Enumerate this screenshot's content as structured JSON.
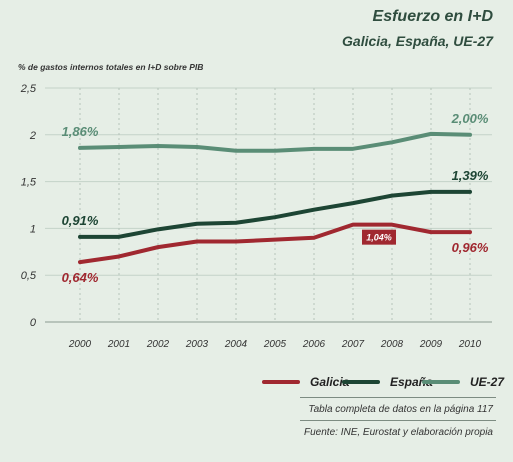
{
  "header": {
    "title": "Esfuerzo en I+D",
    "subtitle": "Galicia, España, UE-27",
    "axis_note": "% de gastos internos totales en I+D sobre PIB"
  },
  "footer": {
    "source_table": "Tabla completa de datos en la página 117",
    "source": "Fuente: INE, Eurostat y elaboración propia"
  },
  "colors": {
    "galicia": "#a02830",
    "espana": "#1d4534",
    "ue27": "#5a8d76"
  },
  "chart_data": {
    "type": "line",
    "title": "Esfuerzo en I+D",
    "subtitle": "Galicia, España, UE-27",
    "ylabel": "% de gastos internos totales en I+D sobre PIB",
    "xlabel": "",
    "categories": [
      "2000",
      "2001",
      "2002",
      "2003",
      "2004",
      "2005",
      "2006",
      "2007",
      "2008",
      "2009",
      "2010"
    ],
    "ylim": [
      0,
      2.5
    ],
    "yticks": [
      {
        "value": 0,
        "label": "0"
      },
      {
        "value": 0.5,
        "label": "0,5"
      },
      {
        "value": 1,
        "label": "1"
      },
      {
        "value": 1.5,
        "label": "1,5"
      },
      {
        "value": 2,
        "label": "2"
      },
      {
        "value": 2.5,
        "label": "2,5"
      }
    ],
    "grid": true,
    "legend_position": "bottom",
    "series": [
      {
        "key": "galicia",
        "name": "Galicia",
        "values": [
          0.64,
          0.7,
          0.8,
          0.86,
          0.86,
          0.88,
          0.9,
          1.04,
          1.04,
          0.96,
          0.96
        ]
      },
      {
        "key": "espana",
        "name": "España",
        "values": [
          0.91,
          0.91,
          0.99,
          1.05,
          1.06,
          1.12,
          1.2,
          1.27,
          1.35,
          1.39,
          1.39
        ]
      },
      {
        "key": "ue27",
        "name": "UE-27",
        "values": [
          1.86,
          1.87,
          1.88,
          1.87,
          1.83,
          1.83,
          1.85,
          1.85,
          1.92,
          2.01,
          2.0
        ]
      }
    ],
    "annotations": [
      {
        "series": "ue27",
        "index": 0,
        "text": "1,86%",
        "position": "above"
      },
      {
        "series": "ue27",
        "index": 10,
        "text": "2,00%",
        "position": "above"
      },
      {
        "series": "espana",
        "index": 0,
        "text": "0,91%",
        "position": "above"
      },
      {
        "series": "espana",
        "index": 10,
        "text": "1,39%",
        "position": "above"
      },
      {
        "series": "galicia",
        "index": 0,
        "text": "0,64%",
        "position": "below"
      },
      {
        "series": "galicia",
        "index": 10,
        "text": "0,96%",
        "position": "below"
      },
      {
        "series": "galicia",
        "index": 8,
        "text": "1,04%",
        "position": "box"
      }
    ]
  }
}
